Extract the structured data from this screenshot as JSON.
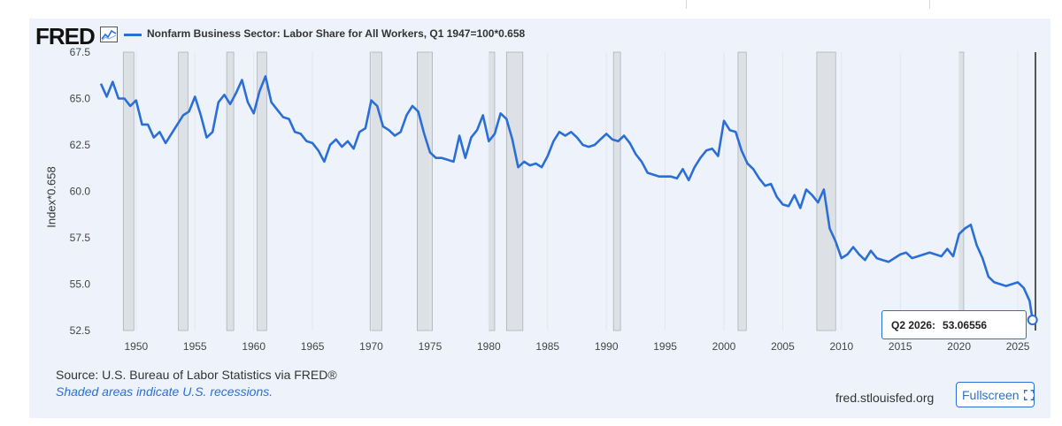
{
  "header": {
    "logo_text": "FRED",
    "series_title": "Nonfarm Business Sector: Labor Share for All Workers, Q1 1947=100*0.658",
    "series_color": "#2b6fd6"
  },
  "footer": {
    "source": "Source: U.S. Bureau of Labor Statistics via FRED®",
    "note": "Shaded areas indicate U.S. recessions.",
    "site": "fred.stlouisfed.org",
    "fullscreen_label": "Fullscreen"
  },
  "tooltip": {
    "date": "Q2 2026:",
    "value": "53.06556"
  },
  "chart_data": {
    "type": "line",
    "ylabel": "Index*0.658",
    "xlabel": "",
    "ylim": [
      52.5,
      67.5
    ],
    "yticks": [
      "52.5",
      "55.0",
      "57.5",
      "60.0",
      "62.5",
      "65.0",
      "67.5"
    ],
    "xlim": [
      1947.0,
      2026.5
    ],
    "xticks": [
      "1950",
      "1955",
      "1960",
      "1965",
      "1970",
      "1975",
      "1980",
      "1985",
      "1990",
      "1995",
      "2000",
      "2005",
      "2010",
      "2015",
      "2020",
      "2025"
    ],
    "grid": "vertical",
    "recessions": [
      [
        1948.9,
        1949.8
      ],
      [
        1953.6,
        1954.4
      ],
      [
        1957.7,
        1958.3
      ],
      [
        1960.3,
        1961.1
      ],
      [
        1969.9,
        1970.9
      ],
      [
        1973.9,
        1975.2
      ],
      [
        1980.0,
        1980.5
      ],
      [
        1981.5,
        1982.9
      ],
      [
        1990.6,
        1991.2
      ],
      [
        2001.2,
        2001.9
      ],
      [
        2007.9,
        2009.5
      ],
      [
        2020.0,
        2020.4
      ]
    ],
    "series": [
      {
        "name": "Nonfarm Business Sector: Labor Share for All Workers, Q1 1947=100*0.658",
        "color": "#2b6fd6",
        "x": [
          1947.0,
          1947.5,
          1948.0,
          1948.5,
          1949.0,
          1949.5,
          1950.0,
          1950.5,
          1951.0,
          1951.5,
          1952.0,
          1952.5,
          1953.0,
          1953.5,
          1954.0,
          1954.5,
          1955.0,
          1955.5,
          1956.0,
          1956.5,
          1957.0,
          1957.5,
          1958.0,
          1958.5,
          1959.0,
          1959.5,
          1960.0,
          1960.5,
          1961.0,
          1961.5,
          1962.0,
          1962.5,
          1963.0,
          1963.5,
          1964.0,
          1964.5,
          1965.0,
          1965.5,
          1966.0,
          1966.5,
          1967.0,
          1967.5,
          1968.0,
          1968.5,
          1969.0,
          1969.5,
          1970.0,
          1970.5,
          1971.0,
          1971.5,
          1972.0,
          1972.5,
          1973.0,
          1973.5,
          1974.0,
          1974.5,
          1975.0,
          1975.5,
          1976.0,
          1976.5,
          1977.0,
          1977.5,
          1978.0,
          1978.5,
          1979.0,
          1979.5,
          1980.0,
          1980.5,
          1981.0,
          1981.5,
          1982.0,
          1982.5,
          1983.0,
          1983.5,
          1984.0,
          1984.5,
          1985.0,
          1985.5,
          1986.0,
          1986.5,
          1987.0,
          1987.5,
          1988.0,
          1988.5,
          1989.0,
          1989.5,
          1990.0,
          1990.5,
          1991.0,
          1991.5,
          1992.0,
          1992.5,
          1993.0,
          1993.5,
          1994.0,
          1994.5,
          1995.0,
          1995.5,
          1996.0,
          1996.5,
          1997.0,
          1997.5,
          1998.0,
          1998.5,
          1999.0,
          1999.5,
          2000.0,
          2000.5,
          2001.0,
          2001.5,
          2002.0,
          2002.5,
          2003.0,
          2003.5,
          2004.0,
          2004.5,
          2005.0,
          2005.5,
          2006.0,
          2006.5,
          2007.0,
          2007.5,
          2008.0,
          2008.5,
          2009.0,
          2009.5,
          2010.0,
          2010.5,
          2011.0,
          2011.5,
          2012.0,
          2012.5,
          2013.0,
          2013.5,
          2014.0,
          2014.5,
          2015.0,
          2015.5,
          2016.0,
          2016.5,
          2017.0,
          2017.5,
          2018.0,
          2018.5,
          2019.0,
          2019.5,
          2020.0,
          2020.5,
          2021.0,
          2021.5,
          2022.0,
          2022.5,
          2023.0,
          2023.5,
          2024.0,
          2024.5,
          2025.0,
          2025.5,
          2026.0,
          2026.25
        ],
        "values": [
          65.8,
          65.1,
          65.9,
          65.0,
          65.0,
          64.6,
          64.9,
          63.6,
          63.6,
          62.9,
          63.2,
          62.6,
          63.1,
          63.6,
          64.1,
          64.3,
          65.1,
          64.1,
          62.9,
          63.2,
          64.8,
          65.2,
          64.7,
          65.3,
          66.0,
          64.8,
          64.2,
          65.4,
          66.2,
          64.8,
          64.4,
          64.0,
          63.9,
          63.2,
          63.1,
          62.7,
          62.6,
          62.2,
          61.6,
          62.5,
          62.8,
          62.4,
          62.7,
          62.3,
          63.2,
          63.4,
          64.9,
          64.6,
          63.5,
          63.3,
          63.0,
          63.2,
          64.1,
          64.6,
          64.3,
          63.1,
          62.1,
          61.8,
          61.8,
          61.7,
          61.6,
          63.0,
          61.8,
          62.9,
          63.3,
          64.1,
          62.7,
          63.1,
          64.2,
          63.9,
          62.8,
          61.3,
          61.6,
          61.4,
          61.5,
          61.3,
          61.9,
          62.7,
          63.2,
          63.0,
          63.2,
          62.9,
          62.5,
          62.4,
          62.5,
          62.8,
          63.1,
          62.8,
          62.7,
          63.0,
          62.6,
          62.0,
          61.6,
          61.0,
          60.9,
          60.8,
          60.8,
          60.8,
          60.7,
          61.2,
          60.6,
          61.3,
          61.8,
          62.2,
          62.3,
          61.9,
          63.8,
          63.3,
          63.2,
          62.2,
          61.5,
          61.2,
          60.7,
          60.3,
          60.4,
          59.7,
          59.3,
          59.2,
          59.8,
          59.1,
          60.1,
          59.8,
          59.4,
          60.1,
          58.0,
          57.3,
          56.4,
          56.6,
          57.0,
          56.6,
          56.3,
          56.8,
          56.4,
          56.3,
          56.2,
          56.4,
          56.6,
          56.7,
          56.4,
          56.5,
          56.6,
          56.7,
          56.6,
          56.5,
          56.9,
          56.5,
          57.7,
          58.0,
          58.2,
          57.1,
          56.4,
          55.4,
          55.1,
          55.0,
          54.9,
          55.0,
          55.1,
          54.8,
          54.1,
          53.07
        ]
      }
    ]
  }
}
